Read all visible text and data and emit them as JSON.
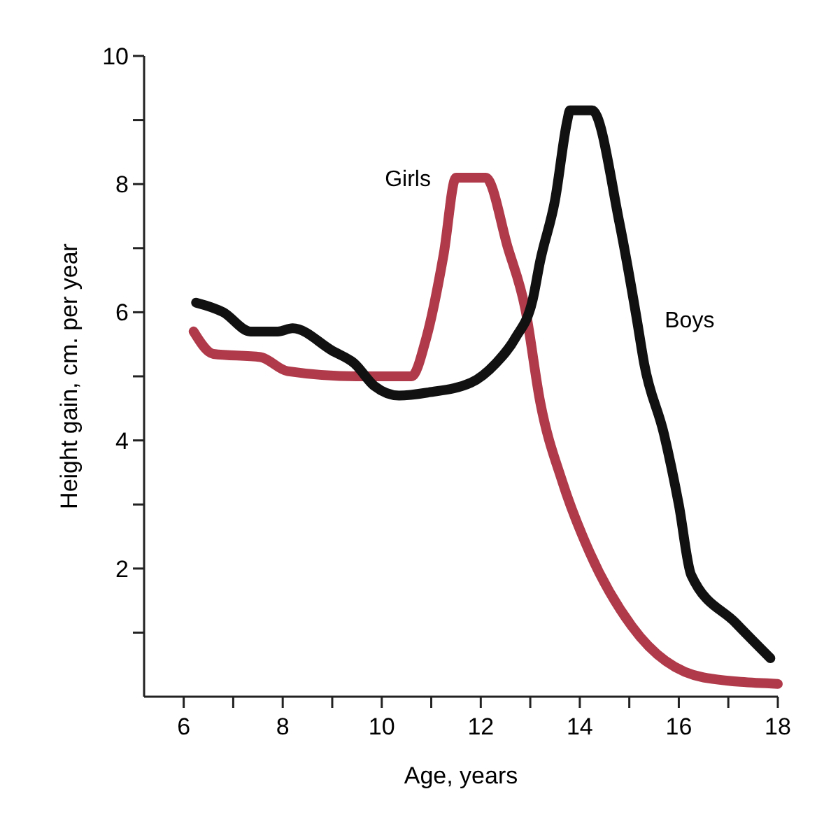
{
  "chart_data": {
    "type": "line",
    "xlabel": "Age, years",
    "ylabel": "Height gain, cm. per year",
    "xlim": [
      5.2,
      18
    ],
    "ylim": [
      0,
      10
    ],
    "xticks": [
      6,
      {
        "value": 7,
        "label": null
      },
      8,
      {
        "value": 9,
        "label": null
      },
      10,
      {
        "value": 11,
        "label": null
      },
      12,
      {
        "value": 13,
        "label": null
      },
      14,
      {
        "value": 15,
        "label": null
      },
      16,
      {
        "value": 17,
        "label": null
      },
      18
    ],
    "yticks": [
      {
        "value": 1,
        "label": null
      },
      2,
      {
        "value": 3,
        "label": null
      },
      4,
      {
        "value": 5,
        "label": null
      },
      6,
      {
        "value": 7,
        "label": null
      },
      8,
      {
        "value": 9,
        "label": null
      },
      10
    ],
    "grid": false,
    "line_style": "solid",
    "marker": "none",
    "series": [
      {
        "name": "Girls",
        "color": "#b03a4a",
        "x": [
          6.2,
          6.6,
          7.55,
          8.1,
          9.5,
          10.6,
          10.9,
          11.25,
          11.5,
          11.7,
          12.1,
          12.55,
          12.9,
          13.2,
          13.65,
          14.2,
          15.05,
          16.5,
          18.0
        ],
        "values": [
          5.7,
          5.35,
          5.3,
          5.08,
          5.0,
          5.0,
          5.6,
          6.9,
          8.1,
          8.1,
          8.1,
          7.0,
          6.05,
          4.6,
          3.35,
          2.25,
          1.1,
          0.3,
          0.2
        ]
      },
      {
        "name": "Boys",
        "color": "#111111",
        "x": [
          6.25,
          6.8,
          7.35,
          7.9,
          8.2,
          9.0,
          9.45,
          9.85,
          10.35,
          10.95,
          11.8,
          12.3,
          12.7,
          13.05,
          13.2,
          13.5,
          13.75,
          13.8,
          14.25,
          14.8,
          15.15,
          15.3,
          15.7,
          16.0,
          16.25,
          17.15,
          17.85
        ],
        "values": [
          6.15,
          6.0,
          5.7,
          5.7,
          5.75,
          5.4,
          5.2,
          4.85,
          4.7,
          4.75,
          4.9,
          5.2,
          5.6,
          6.2,
          6.8,
          7.75,
          9.0,
          9.15,
          9.15,
          7.4,
          5.9,
          5.2,
          4.1,
          3.0,
          1.9,
          1.15,
          0.6
        ]
      }
    ]
  }
}
